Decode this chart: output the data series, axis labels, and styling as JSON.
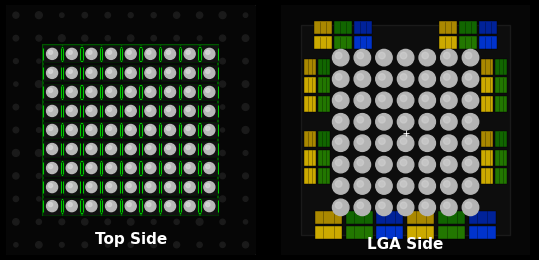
{
  "fig_width": 5.39,
  "fig_height": 2.6,
  "dpi": 100,
  "bg_color": "#000000",
  "left_panel": {
    "label": "Top Side",
    "label_color": "#ffffff",
    "label_fontsize": 11,
    "label_fontweight": "bold",
    "panel_bg": "#060606",
    "panel_border": "#2a2a2a",
    "chip_bg": "#080808",
    "chip_border": "#1a6600",
    "grid_rows": 9,
    "grid_cols": 9,
    "outer_dot_color": "#1c1c1c",
    "outer_dot_rows": 11,
    "outer_dot_cols": 11
  },
  "right_panel": {
    "label": "LGA Side",
    "label_color": "#ffffff",
    "label_fontsize": 11,
    "label_fontweight": "bold",
    "panel_bg": "#060606",
    "panel_border": "#2a2a2a",
    "chip_bg": "#0d0d0d",
    "ball_rows": 8,
    "ball_cols": 7,
    "ball_color": "#c0c0c0"
  }
}
